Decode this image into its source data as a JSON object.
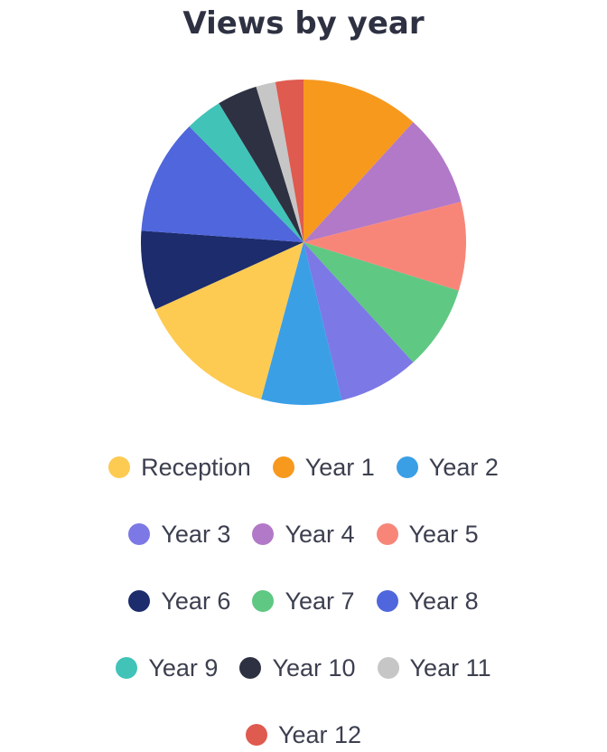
{
  "chart_data": {
    "type": "pie",
    "title": "Views by year",
    "start_angle_deg": 0,
    "direction": "clockwise",
    "slices": [
      {
        "label": "Year 1",
        "value": 11.5,
        "color": "#f7991d"
      },
      {
        "label": "Year 4",
        "value": 9.0,
        "color": "#b279c8"
      },
      {
        "label": "Year 5",
        "value": 8.6,
        "color": "#f78679"
      },
      {
        "label": "Year 7",
        "value": 8.2,
        "color": "#5fc883"
      },
      {
        "label": "Year 3",
        "value": 7.8,
        "color": "#7c78e6"
      },
      {
        "label": "Year 2",
        "value": 7.8,
        "color": "#3b9fe6"
      },
      {
        "label": "Reception",
        "value": 13.7,
        "color": "#fdcb52"
      },
      {
        "label": "Year 6",
        "value": 7.7,
        "color": "#1c2c6c"
      },
      {
        "label": "Year 8",
        "value": 11.2,
        "color": "#4f66dc"
      },
      {
        "label": "Year 9",
        "value": 3.6,
        "color": "#41c3b8"
      },
      {
        "label": "Year 10",
        "value": 3.9,
        "color": "#2e3142"
      },
      {
        "label": "Year 11",
        "value": 1.9,
        "color": "#c6c6c6"
      },
      {
        "label": "Year 12",
        "value": 2.7,
        "color": "#df5a4f"
      }
    ],
    "legend": {
      "placement": "bottom",
      "rows": [
        [
          {
            "label": "Reception",
            "color": "#fdcb52"
          },
          {
            "label": "Year 1",
            "color": "#f7991d"
          },
          {
            "label": "Year 2",
            "color": "#3b9fe6"
          }
        ],
        [
          {
            "label": "Year 3",
            "color": "#7c78e6"
          },
          {
            "label": "Year 4",
            "color": "#b279c8"
          },
          {
            "label": "Year 5",
            "color": "#f78679"
          }
        ],
        [
          {
            "label": "Year 6",
            "color": "#1c2c6c"
          },
          {
            "label": "Year 7",
            "color": "#5fc883"
          },
          {
            "label": "Year 8",
            "color": "#4f66dc"
          }
        ],
        [
          {
            "label": "Year 9",
            "color": "#41c3b8"
          },
          {
            "label": "Year 10",
            "color": "#2e3142"
          },
          {
            "label": "Year 11",
            "color": "#c6c6c6"
          }
        ],
        [
          {
            "label": "Year 12",
            "color": "#df5a4f"
          }
        ]
      ]
    }
  }
}
